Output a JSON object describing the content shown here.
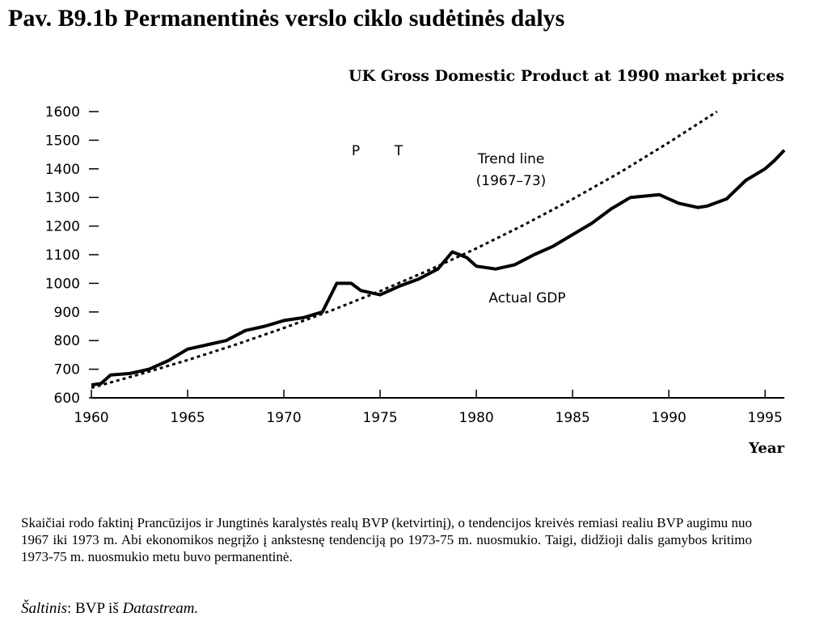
{
  "page_title": "Pav. B9.1b Permanentinės verslo ciklo sudėtinės dalys",
  "chart_data": {
    "type": "line",
    "title": "UK Gross Domestic Product at 1990 market prices",
    "x_label": "Year",
    "xlim": [
      1960,
      1996
    ],
    "xticks": [
      1960,
      1965,
      1970,
      1975,
      1980,
      1985,
      1990,
      1995
    ],
    "ylim": [
      600,
      1600
    ],
    "yticks": [
      600,
      700,
      800,
      900,
      1000,
      1100,
      1200,
      1300,
      1400,
      1500,
      1600
    ],
    "annotations": [
      "P",
      "T",
      "Trend line",
      "(1967–73)",
      "Actual GDP"
    ],
    "series": [
      {
        "name": "Actual GDP",
        "color": "#000000",
        "dashed": false,
        "x": [
          1960,
          1960.5,
          1961,
          1962,
          1963,
          1964,
          1965,
          1966,
          1967,
          1968,
          1969,
          1970,
          1971,
          1972,
          1972.75,
          1973.5,
          1974,
          1975,
          1976,
          1977,
          1978,
          1978.75,
          1979.5,
          1980,
          1981,
          1982,
          1983,
          1984,
          1985,
          1986,
          1987,
          1988,
          1989.5,
          1990.5,
          1991.5,
          1992,
          1993,
          1994,
          1995,
          1995.5,
          1996
        ],
        "values": [
          645,
          650,
          680,
          685,
          700,
          730,
          770,
          785,
          800,
          835,
          850,
          870,
          880,
          900,
          1000,
          1000,
          975,
          960,
          990,
          1015,
          1050,
          1110,
          1090,
          1060,
          1050,
          1065,
          1100,
          1130,
          1170,
          1210,
          1260,
          1300,
          1310,
          1280,
          1265,
          1270,
          1295,
          1360,
          1400,
          1430,
          1465
        ]
      },
      {
        "name": "Trend line",
        "color": "#000000",
        "dashed": true,
        "x": [
          1960,
          1962.5,
          1965,
          1967.5,
          1970,
          1972.5,
          1975,
          1977.5,
          1980,
          1982.5,
          1985,
          1987.5,
          1990,
          1992.5
        ],
        "values": [
          635,
          682,
          732,
          786,
          844,
          906,
          973,
          1045,
          1122,
          1205,
          1294,
          1389,
          1492,
          1600
        ]
      }
    ]
  },
  "caption": "Skaičiai rodo faktinį Prancūzijos ir Jungtinės karalystės realų BVP (ketvirtinį), o tendencijos kreivės remiasi realiu BVP augimu nuo 1967 iki 1973 m. Abi ekonomikos negrįžo į ankstesnę tendenciją po 1973-75 m. nuosmukio. Taigi, didžioji dalis gamybos kritimo 1973-75 m. nuosmukio metu buvo permanentinė.",
  "source": {
    "label": "Šaltinis",
    "text": ": BVP iš ",
    "name": "Datastream."
  }
}
